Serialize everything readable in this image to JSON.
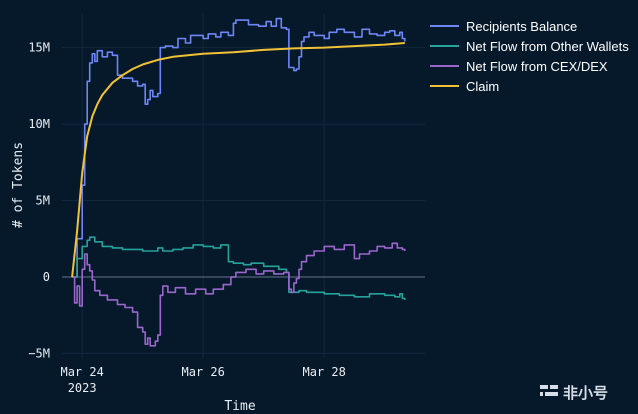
{
  "chart_data": {
    "type": "line",
    "xlabel": "Time",
    "ylabel": "# of Tokens",
    "x_axis": {
      "type": "date",
      "range": [
        "2023-03-23 16:00",
        "2023-03-29 16:00"
      ],
      "ticks": [
        {
          "x": "2023-03-24",
          "label": "Mar 24",
          "sublabel": "2023"
        },
        {
          "x": "2023-03-26",
          "label": "Mar 26",
          "sublabel": ""
        },
        {
          "x": "2023-03-28",
          "label": "Mar 28",
          "sublabel": ""
        }
      ]
    },
    "y_axis": {
      "range": [
        -5300000,
        17200000
      ],
      "ticks": [
        {
          "v": -5000000,
          "label": "−5M"
        },
        {
          "v": 0,
          "label": "0"
        },
        {
          "v": 5000000,
          "label": "5M"
        },
        {
          "v": 10000000,
          "label": "10M"
        },
        {
          "v": 15000000,
          "label": "15M"
        }
      ]
    },
    "grid": true,
    "legend_position": "top-right",
    "series": [
      {
        "name": "Recipients Balance",
        "color": "#6e86f5",
        "step": true,
        "points": [
          [
            "2023-03-23 20:00",
            0
          ],
          [
            "2023-03-23 22:00",
            2500000
          ],
          [
            "2023-03-24 00:00",
            6000000
          ],
          [
            "2023-03-24 01:00",
            10000000
          ],
          [
            "2023-03-24 02:00",
            12800000
          ],
          [
            "2023-03-24 03:00",
            14000000
          ],
          [
            "2023-03-24 04:00",
            14600000
          ],
          [
            "2023-03-24 05:00",
            14100000
          ],
          [
            "2023-03-24 06:00",
            14800000
          ],
          [
            "2023-03-24 08:00",
            14400000
          ],
          [
            "2023-03-24 10:00",
            14700000
          ],
          [
            "2023-03-24 12:00",
            14500000
          ],
          [
            "2023-03-24 14:00",
            13200000
          ],
          [
            "2023-03-24 16:00",
            13000000
          ],
          [
            "2023-03-24 20:00",
            12800000
          ],
          [
            "2023-03-24 22:00",
            12500000
          ],
          [
            "2023-03-25 00:00",
            12600000
          ],
          [
            "2023-03-25 01:00",
            11300000
          ],
          [
            "2023-03-25 02:00",
            11600000
          ],
          [
            "2023-03-25 03:00",
            12200000
          ],
          [
            "2023-03-25 04:00",
            11800000
          ],
          [
            "2023-03-25 06:00",
            12000000
          ],
          [
            "2023-03-25 07:00",
            15000000
          ],
          [
            "2023-03-25 09:00",
            15100000
          ],
          [
            "2023-03-25 12:00",
            15000000
          ],
          [
            "2023-03-25 14:00",
            15600000
          ],
          [
            "2023-03-25 17:00",
            15300000
          ],
          [
            "2023-03-25 19:00",
            15800000
          ],
          [
            "2023-03-26 00:00",
            15600000
          ],
          [
            "2023-03-26 02:00",
            15900000
          ],
          [
            "2023-03-26 05:00",
            15700000
          ],
          [
            "2023-03-26 07:00",
            16000000
          ],
          [
            "2023-03-26 10:00",
            15800000
          ],
          [
            "2023-03-26 12:00",
            16600000
          ],
          [
            "2023-03-26 13:00",
            16800000
          ],
          [
            "2023-03-26 18:00",
            16500000
          ],
          [
            "2023-03-26 22:00",
            16400000
          ],
          [
            "2023-03-27 01:00",
            16700000
          ],
          [
            "2023-03-27 03:00",
            16400000
          ],
          [
            "2023-03-27 05:00",
            16900000
          ],
          [
            "2023-03-27 07:00",
            16300000
          ],
          [
            "2023-03-27 09:00",
            16200000
          ],
          [
            "2023-03-27 10:00",
            13700000
          ],
          [
            "2023-03-27 12:00",
            13500000
          ],
          [
            "2023-03-27 13:00",
            13600000
          ],
          [
            "2023-03-27 14:00",
            14400000
          ],
          [
            "2023-03-27 15:00",
            15400000
          ],
          [
            "2023-03-27 16:00",
            15700000
          ],
          [
            "2023-03-27 18:00",
            16000000
          ],
          [
            "2023-03-27 20:00",
            15800000
          ],
          [
            "2023-03-28 00:00",
            15600000
          ],
          [
            "2023-03-28 02:00",
            16000000
          ],
          [
            "2023-03-28 05:00",
            16200000
          ],
          [
            "2023-03-28 08:00",
            16000000
          ],
          [
            "2023-03-28 12:00",
            15700000
          ],
          [
            "2023-03-28 15:00",
            16200000
          ],
          [
            "2023-03-28 18:00",
            15900000
          ],
          [
            "2023-03-28 21:00",
            15800000
          ],
          [
            "2023-03-29 00:00",
            16000000
          ],
          [
            "2023-03-29 02:00",
            16100000
          ],
          [
            "2023-03-29 04:00",
            15800000
          ],
          [
            "2023-03-29 06:00",
            16000000
          ],
          [
            "2023-03-29 07:00",
            15600000
          ],
          [
            "2023-03-29 08:00",
            15400000
          ]
        ]
      },
      {
        "name": "Net Flow from Other Wallets",
        "color": "#25a39b",
        "step": true,
        "points": [
          [
            "2023-03-23 20:00",
            0
          ],
          [
            "2023-03-23 22:00",
            1200000
          ],
          [
            "2023-03-24 00:00",
            2000000
          ],
          [
            "2023-03-24 02:00",
            2400000
          ],
          [
            "2023-03-24 03:00",
            2600000
          ],
          [
            "2023-03-24 05:00",
            2300000
          ],
          [
            "2023-03-24 08:00",
            2000000
          ],
          [
            "2023-03-24 12:00",
            1900000
          ],
          [
            "2023-03-24 16:00",
            1800000
          ],
          [
            "2023-03-25 00:00",
            1700000
          ],
          [
            "2023-03-25 06:00",
            1900000
          ],
          [
            "2023-03-25 08:00",
            1700000
          ],
          [
            "2023-03-25 12:00",
            1800000
          ],
          [
            "2023-03-25 16:00",
            1900000
          ],
          [
            "2023-03-25 20:00",
            2100000
          ],
          [
            "2023-03-26 00:00",
            2000000
          ],
          [
            "2023-03-26 04:00",
            1900000
          ],
          [
            "2023-03-26 07:00",
            2100000
          ],
          [
            "2023-03-26 10:00",
            1000000
          ],
          [
            "2023-03-26 12:00",
            900000
          ],
          [
            "2023-03-26 16:00",
            800000
          ],
          [
            "2023-03-26 19:00",
            900000
          ],
          [
            "2023-03-27 00:00",
            700000
          ],
          [
            "2023-03-27 06:00",
            500000
          ],
          [
            "2023-03-27 09:00",
            300000
          ],
          [
            "2023-03-27 10:00",
            -1000000
          ],
          [
            "2023-03-27 14:00",
            -900000
          ],
          [
            "2023-03-27 17:00",
            -1000000
          ],
          [
            "2023-03-28 00:00",
            -1100000
          ],
          [
            "2023-03-28 06:00",
            -1200000
          ],
          [
            "2023-03-28 12:00",
            -1300000
          ],
          [
            "2023-03-28 18:00",
            -1100000
          ],
          [
            "2023-03-29 00:00",
            -1200000
          ],
          [
            "2023-03-29 04:00",
            -1300000
          ],
          [
            "2023-03-29 06:00",
            -1100000
          ],
          [
            "2023-03-29 07:00",
            -1400000
          ],
          [
            "2023-03-29 08:00",
            -1500000
          ]
        ]
      },
      {
        "name": "Net Flow from CEX/DEX",
        "color": "#9b66cd",
        "step": true,
        "points": [
          [
            "2023-03-23 20:00",
            0
          ],
          [
            "2023-03-23 21:00",
            -1700000
          ],
          [
            "2023-03-23 22:00",
            -600000
          ],
          [
            "2023-03-23 23:00",
            -1900000
          ],
          [
            "2023-03-24 00:00",
            500000
          ],
          [
            "2023-03-24 01:00",
            1500000
          ],
          [
            "2023-03-24 02:00",
            800000
          ],
          [
            "2023-03-24 03:00",
            400000
          ],
          [
            "2023-03-24 04:00",
            -200000
          ],
          [
            "2023-03-24 05:00",
            -900000
          ],
          [
            "2023-03-24 07:00",
            -1200000
          ],
          [
            "2023-03-24 10:00",
            -1500000
          ],
          [
            "2023-03-24 14:00",
            -1800000
          ],
          [
            "2023-03-24 17:00",
            -2000000
          ],
          [
            "2023-03-24 20:00",
            -2300000
          ],
          [
            "2023-03-24 22:00",
            -3300000
          ],
          [
            "2023-03-25 00:00",
            -3600000
          ],
          [
            "2023-03-25 01:00",
            -4400000
          ],
          [
            "2023-03-25 02:00",
            -4000000
          ],
          [
            "2023-03-25 03:00",
            -4500000
          ],
          [
            "2023-03-25 05:00",
            -4200000
          ],
          [
            "2023-03-25 06:00",
            -3800000
          ],
          [
            "2023-03-25 07:00",
            -1200000
          ],
          [
            "2023-03-25 08:00",
            -600000
          ],
          [
            "2023-03-25 10:00",
            -1000000
          ],
          [
            "2023-03-25 13:00",
            -700000
          ],
          [
            "2023-03-25 17:00",
            -1100000
          ],
          [
            "2023-03-25 21:00",
            -800000
          ],
          [
            "2023-03-26 01:00",
            -1100000
          ],
          [
            "2023-03-26 04:00",
            -800000
          ],
          [
            "2023-03-26 08:00",
            -500000
          ],
          [
            "2023-03-26 11:00",
            0
          ],
          [
            "2023-03-26 13:00",
            300000
          ],
          [
            "2023-03-26 17:00",
            500000
          ],
          [
            "2023-03-26 21:00",
            200000
          ],
          [
            "2023-03-27 00:00",
            400000
          ],
          [
            "2023-03-27 04:00",
            200000
          ],
          [
            "2023-03-27 08:00",
            300000
          ],
          [
            "2023-03-27 10:00",
            -800000
          ],
          [
            "2023-03-27 11:00",
            -1000000
          ],
          [
            "2023-03-27 12:00",
            -400000
          ],
          [
            "2023-03-27 13:00",
            -100000
          ],
          [
            "2023-03-27 14:00",
            500000
          ],
          [
            "2023-03-27 15:00",
            1000000
          ],
          [
            "2023-03-27 17:00",
            1400000
          ],
          [
            "2023-03-27 20:00",
            1700000
          ],
          [
            "2023-03-28 00:00",
            2000000
          ],
          [
            "2023-03-28 04:00",
            1800000
          ],
          [
            "2023-03-28 08:00",
            2100000
          ],
          [
            "2023-03-28 12:00",
            1200000
          ],
          [
            "2023-03-28 14:00",
            1500000
          ],
          [
            "2023-03-28 18:00",
            1700000
          ],
          [
            "2023-03-28 21:00",
            2000000
          ],
          [
            "2023-03-29 00:00",
            1900000
          ],
          [
            "2023-03-29 03:00",
            2200000
          ],
          [
            "2023-03-29 05:00",
            1900000
          ],
          [
            "2023-03-29 07:00",
            1800000
          ],
          [
            "2023-03-29 08:00",
            1700000
          ]
        ]
      },
      {
        "name": "Claim",
        "color": "#f2c235",
        "step": false,
        "points": [
          [
            "2023-03-23 20:00",
            0
          ],
          [
            "2023-03-23 22:00",
            3000000
          ],
          [
            "2023-03-24 00:00",
            6800000
          ],
          [
            "2023-03-24 02:00",
            9200000
          ],
          [
            "2023-03-24 04:00",
            10500000
          ],
          [
            "2023-03-24 06:00",
            11300000
          ],
          [
            "2023-03-24 08:00",
            11900000
          ],
          [
            "2023-03-24 12:00",
            12700000
          ],
          [
            "2023-03-24 16:00",
            13200000
          ],
          [
            "2023-03-24 20:00",
            13600000
          ],
          [
            "2023-03-25 00:00",
            13900000
          ],
          [
            "2023-03-25 06:00",
            14200000
          ],
          [
            "2023-03-25 12:00",
            14400000
          ],
          [
            "2023-03-26 00:00",
            14600000
          ],
          [
            "2023-03-26 12:00",
            14700000
          ],
          [
            "2023-03-27 00:00",
            14850000
          ],
          [
            "2023-03-27 12:00",
            14950000
          ],
          [
            "2023-03-28 00:00",
            15000000
          ],
          [
            "2023-03-28 12:00",
            15100000
          ],
          [
            "2023-03-29 00:00",
            15200000
          ],
          [
            "2023-03-29 08:00",
            15300000
          ]
        ]
      }
    ]
  },
  "watermark": {
    "text": "非小号"
  }
}
